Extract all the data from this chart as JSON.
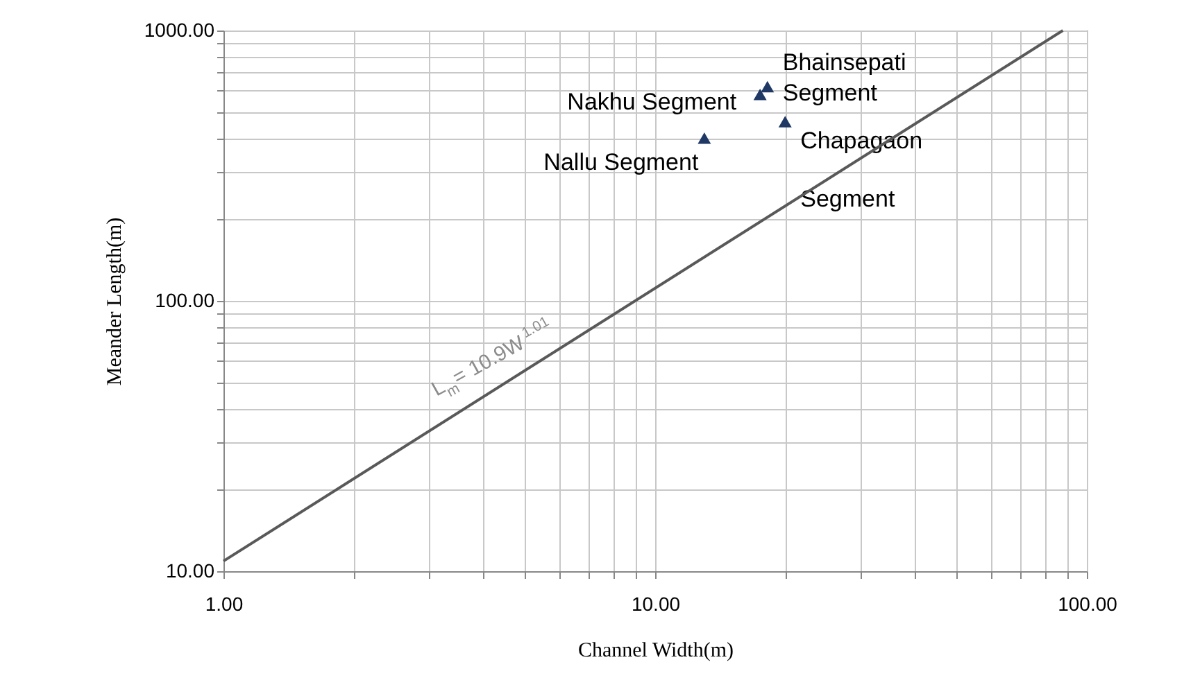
{
  "chart_data": {
    "type": "scatter",
    "xlabel": "Channel Width(m)",
    "ylabel": "Meander Length(m)",
    "log": "xy",
    "grid": true,
    "marker": "triangle",
    "xlim": [
      1,
      100
    ],
    "ylim": [
      10,
      1000
    ],
    "xticks": [
      {
        "value": 1,
        "label": "1.00"
      },
      {
        "value": 2,
        "label": null
      },
      {
        "value": 3,
        "label": null
      },
      {
        "value": 4,
        "label": null
      },
      {
        "value": 5,
        "label": null
      },
      {
        "value": 6,
        "label": null
      },
      {
        "value": 7,
        "label": null
      },
      {
        "value": 8,
        "label": null
      },
      {
        "value": 9,
        "label": null
      },
      {
        "value": 10,
        "label": "10.00"
      },
      {
        "value": 20,
        "label": null
      },
      {
        "value": 30,
        "label": null
      },
      {
        "value": 40,
        "label": null
      },
      {
        "value": 50,
        "label": null
      },
      {
        "value": 60,
        "label": null
      },
      {
        "value": 70,
        "label": null
      },
      {
        "value": 80,
        "label": null
      },
      {
        "value": 90,
        "label": null
      },
      {
        "value": 100,
        "label": "100.00"
      }
    ],
    "yticks": [
      {
        "value": 10,
        "label": "10.00"
      },
      {
        "value": 20,
        "label": null
      },
      {
        "value": 30,
        "label": null
      },
      {
        "value": 40,
        "label": null
      },
      {
        "value": 50,
        "label": null
      },
      {
        "value": 60,
        "label": null
      },
      {
        "value": 70,
        "label": null
      },
      {
        "value": 80,
        "label": null
      },
      {
        "value": 90,
        "label": null
      },
      {
        "value": 100,
        "label": "100.00"
      },
      {
        "value": 200,
        "label": null
      },
      {
        "value": 300,
        "label": null
      },
      {
        "value": 400,
        "label": null
      },
      {
        "value": 500,
        "label": null
      },
      {
        "value": 600,
        "label": null
      },
      {
        "value": 700,
        "label": null
      },
      {
        "value": 800,
        "label": null
      },
      {
        "value": 900,
        "label": null
      },
      {
        "value": 1000,
        "label": "1000.00"
      }
    ],
    "series": [
      {
        "name": "Nallu Segment",
        "color": "#1f3864",
        "x": [
          13
        ],
        "values": [
          400
        ]
      },
      {
        "name": "Nakhu Segment",
        "color": "#1f3864",
        "x": [
          17.5
        ],
        "values": [
          580
        ]
      },
      {
        "name": "Bhainsepati Segment",
        "color": "#1f3864",
        "x": [
          18.2
        ],
        "values": [
          620
        ]
      },
      {
        "name": "Chapagaon Segment",
        "color": "#1f3864",
        "x": [
          20
        ],
        "values": [
          460
        ]
      },
      {
        "type": "line",
        "color": "#595959",
        "x": [
          1,
          88
        ],
        "values": [
          10.9,
          1000
        ],
        "line_style": "solid",
        "marker": "none"
      }
    ],
    "annotations": [
      {
        "text": "L$_{m}$ = 10.9W$^{1.01}$",
        "x": 4.5,
        "y": 50
      }
    ]
  }
}
